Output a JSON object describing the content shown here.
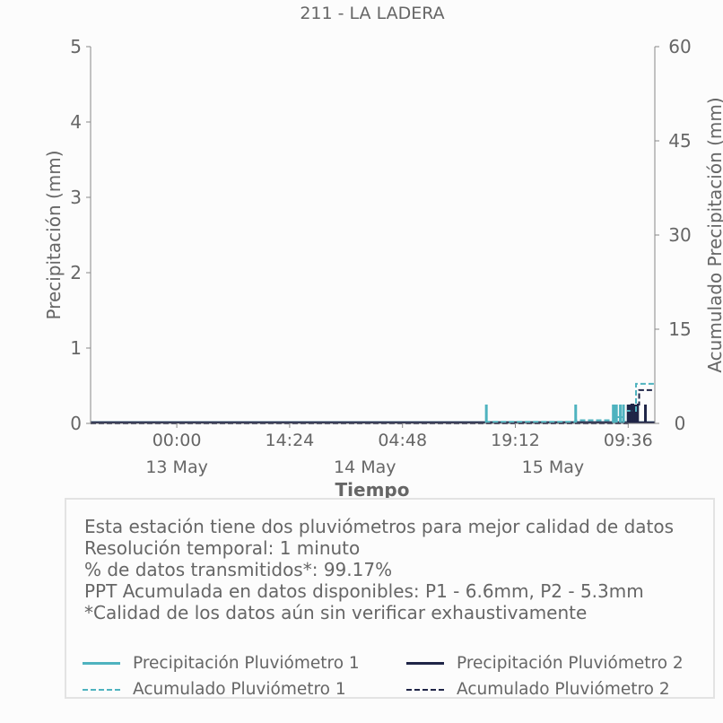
{
  "chart_data": {
    "type": "line",
    "title": "211 - LA LADERA",
    "xlabel": "Tiempo",
    "ylabel": "Precipitación (mm)",
    "y2label": "Acumulado Precipitación (mm)",
    "ylim": [
      0,
      5
    ],
    "y2lim": [
      0,
      60
    ],
    "yticks": [
      "0",
      "1",
      "2",
      "3",
      "4",
      "5"
    ],
    "y2ticks": [
      "0",
      "15",
      "30",
      "45",
      "60"
    ],
    "xlim_hours": [
      -11,
      61
    ],
    "xticks": [
      {
        "hours": 0,
        "time": "00:00",
        "date": "13 May"
      },
      {
        "hours": 14.4,
        "time": "14:24",
        "date": ""
      },
      {
        "hours": 28.8,
        "time": "04:48",
        "date": "14 May"
      },
      {
        "hours": 43.2,
        "time": "19:12",
        "date": ""
      },
      {
        "hours": 57.6,
        "time": "09:36",
        "date": "15 May"
      }
    ],
    "date_labels": [
      {
        "hours": 0,
        "label": "13 May"
      },
      {
        "hours": 24,
        "label": "14 May"
      },
      {
        "hours": 48,
        "label": "15 May"
      }
    ],
    "grid": false,
    "series": [
      {
        "name": "Precipitación Pluviómetro 1",
        "kind": "bars",
        "axis": "left",
        "color": "#4fb3bf",
        "points": [
          {
            "h": 39.5,
            "v": 0.25
          },
          {
            "h": 50.9,
            "v": 0.25
          },
          {
            "h": 55.7,
            "v": 0.25
          },
          {
            "h": 55.9,
            "v": 0.25
          },
          {
            "h": 56.1,
            "v": 0.25
          },
          {
            "h": 56.6,
            "v": 0.25
          },
          {
            "h": 57.0,
            "v": 0.25
          },
          {
            "h": 57.6,
            "v": 0.25
          },
          {
            "h": 58.1,
            "v": 0.25
          },
          {
            "h": 58.6,
            "v": 0.25
          },
          {
            "h": 63.9,
            "v": 0.25
          }
        ]
      },
      {
        "name": "Precipitación Pluviómetro 2",
        "kind": "bars",
        "axis": "left",
        "color": "#1f2547",
        "points": [
          {
            "h": 57.6,
            "v": 0.25
          },
          {
            "h": 57.8,
            "v": 0.25
          },
          {
            "h": 58.0,
            "v": 0.25
          },
          {
            "h": 58.2,
            "v": 0.25
          },
          {
            "h": 58.4,
            "v": 0.25
          },
          {
            "h": 58.6,
            "v": 0.25
          },
          {
            "h": 58.8,
            "v": 0.25
          },
          {
            "h": 59.8,
            "v": 0.25
          }
        ]
      },
      {
        "name": "Acumulado Pluviómetro 1",
        "kind": "step",
        "axis": "right",
        "color": "#4fb3bf",
        "points": [
          {
            "h": -11,
            "v": 0
          },
          {
            "h": 39.5,
            "v": 0.25
          },
          {
            "h": 50.9,
            "v": 0.5
          },
          {
            "h": 55.7,
            "v": 1.0
          },
          {
            "h": 57.0,
            "v": 2.0
          },
          {
            "h": 58.6,
            "v": 6.3
          },
          {
            "h": 63.9,
            "v": 6.6
          },
          {
            "h": 72,
            "v": 6.6
          }
        ]
      },
      {
        "name": "Acumulado Pluviómetro 2",
        "kind": "step",
        "axis": "right",
        "color": "#1f2547",
        "points": [
          {
            "h": -11,
            "v": 0
          },
          {
            "h": 58.0,
            "v": 3.0
          },
          {
            "h": 59.0,
            "v": 5.3
          },
          {
            "h": 72,
            "v": 5.3
          }
        ]
      }
    ]
  },
  "info": {
    "lines": [
      "Esta estación tiene dos pluviómetros para mejor calidad de datos",
      "Resolución temporal: 1 minuto",
      "% de datos transmitidos*: 99.17%",
      "PPT Acumulada en datos disponibles: P1 - 6.6mm, P2 - 5.3mm",
      "*Calidad de los datos aún sin verificar exhaustivamente"
    ]
  },
  "legend": {
    "items": [
      {
        "label": "Precipitación Pluviómetro 1",
        "color": "#4fb3bf",
        "style": "solid"
      },
      {
        "label": "Precipitación Pluviómetro 2",
        "color": "#1f2547",
        "style": "solid"
      },
      {
        "label": "Acumulado Pluviómetro 1",
        "color": "#4fb3bf",
        "style": "dashed"
      },
      {
        "label": "Acumulado Pluviómetro 2",
        "color": "#1f2547",
        "style": "dashed"
      }
    ]
  }
}
